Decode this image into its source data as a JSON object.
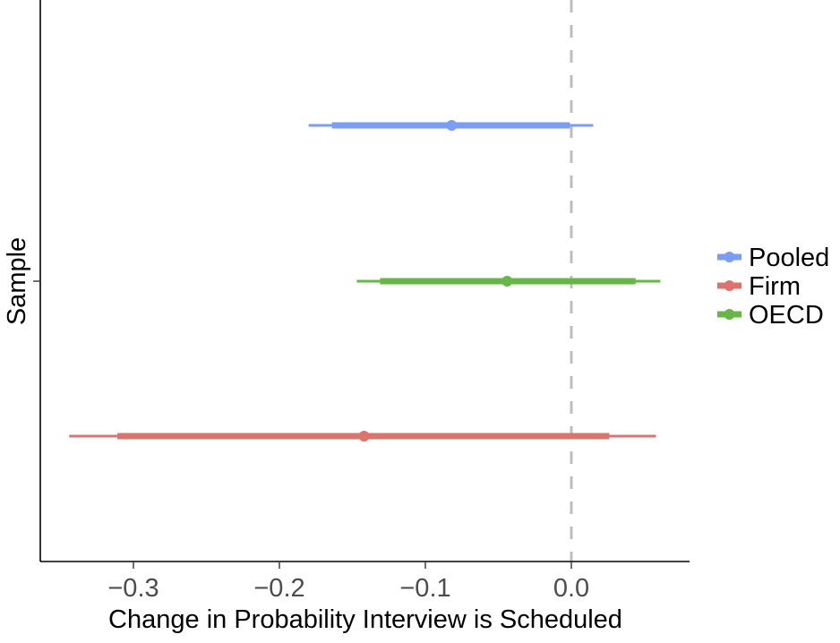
{
  "chart_data": {
    "type": "errorbar",
    "title": "",
    "xlabel": "Change in Probability Interview is Scheduled",
    "ylabel": "Sample",
    "xlim": [
      -0.364,
      0.081
    ],
    "xticks": [
      -0.3,
      -0.2,
      -0.1,
      0.0
    ],
    "xtick_labels": [
      "−0.3",
      "−0.2",
      "−0.1",
      "0.0"
    ],
    "reference_line": {
      "x": 0.0,
      "style": "dashed",
      "color": "#BEBEBE"
    },
    "grid": false,
    "legend_position": "right",
    "series": [
      {
        "name": "Pooled",
        "color": "#7B9EF2",
        "estimate": -0.082,
        "ci_inner": [
          -0.164,
          -0.001
        ],
        "ci_outer": [
          -0.18,
          0.015
        ],
        "row": 1
      },
      {
        "name": "OECD",
        "color": "#67B748",
        "estimate": -0.044,
        "ci_inner": [
          -0.131,
          0.044
        ],
        "ci_outer": [
          -0.147,
          0.061
        ],
        "row": 2
      },
      {
        "name": "Firm",
        "color": "#DB746F",
        "estimate": -0.142,
        "ci_inner": [
          -0.311,
          0.026
        ],
        "ci_outer": [
          -0.344,
          0.058
        ],
        "row": 3
      }
    ],
    "legend": [
      {
        "label": "Pooled",
        "color": "#7B9EF2"
      },
      {
        "label": "Firm",
        "color": "#DB746F"
      },
      {
        "label": "OECD",
        "color": "#67B748"
      }
    ]
  }
}
